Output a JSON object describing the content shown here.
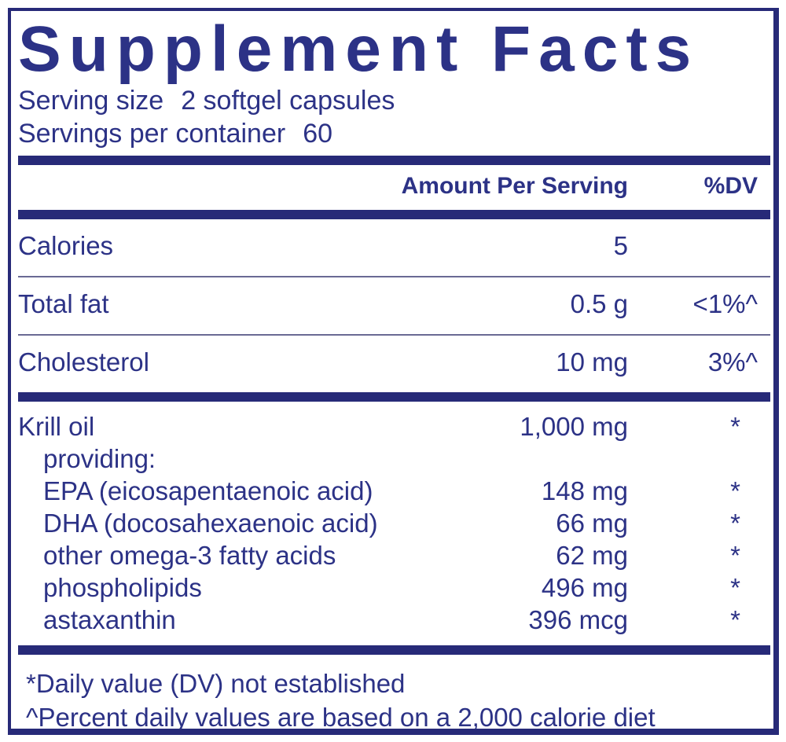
{
  "colors": {
    "navy": "#272a78",
    "text": "#2c3286",
    "rule": "#6a6a94"
  },
  "title": "Supplement Facts",
  "serving_info": {
    "size_label": "Serving size",
    "size_value": "2 softgel capsules",
    "count_label": "Servings per container",
    "count_value": "60"
  },
  "header": {
    "amount": "Amount Per Serving",
    "dv": "%DV"
  },
  "rows": [
    {
      "name": "Calories",
      "amount": "5",
      "dv": ""
    },
    {
      "name": "Total fat",
      "amount": "0.5 g",
      "dv": "<1%^"
    },
    {
      "name": "Cholesterol",
      "amount": "10 mg",
      "dv": "3%^"
    },
    {
      "name": "Krill oil",
      "amount": "1,000 mg",
      "dv": "*"
    },
    {
      "name": "providing:",
      "amount": "",
      "dv": ""
    },
    {
      "name": "EPA (eicosapentaenoic acid)",
      "amount": "148 mg",
      "dv": "*"
    },
    {
      "name": "DHA (docosahexaenoic acid)",
      "amount": "66 mg",
      "dv": "*"
    },
    {
      "name": "other omega-3 fatty acids",
      "amount": "62 mg",
      "dv": "*"
    },
    {
      "name": "phospholipids",
      "amount": "496 mg",
      "dv": "*"
    },
    {
      "name": "astaxanthin",
      "amount": "396 mcg",
      "dv": "*"
    }
  ],
  "footnotes": {
    "daily_value": "*Daily value (DV) not established",
    "percent_basis": "^Percent daily values are based on a 2,000 calorie diet"
  }
}
